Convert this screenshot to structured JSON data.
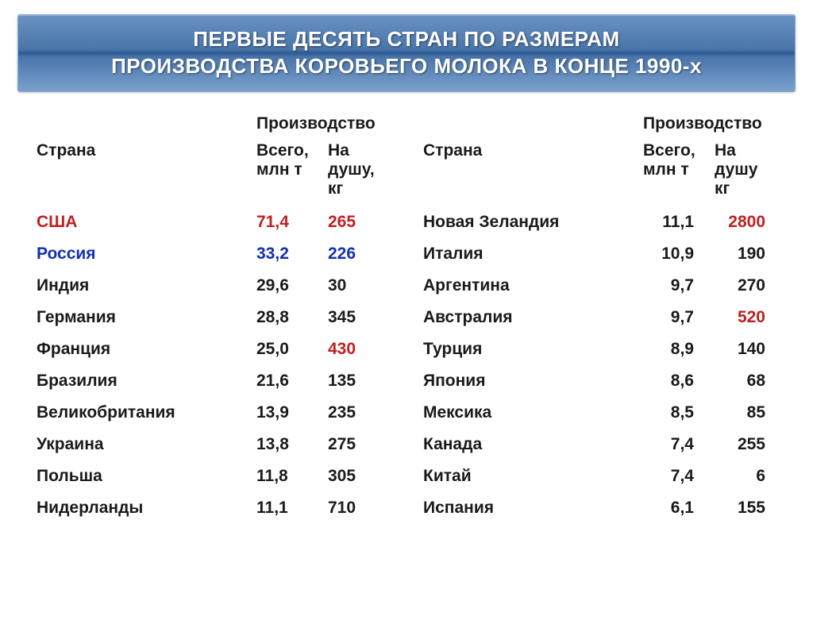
{
  "title_line1": "ПЕРВЫЕ ДЕСЯТЬ СТРАН ПО РАЗМЕРАМ",
  "title_line2": "ПРОИЗВОДСТВА КОРОВЬЕГО МОЛОКА В КОНЦЕ 1990-х",
  "headers": {
    "production": "Производство",
    "country": "Страна",
    "total": "Всего, млн т",
    "percapita_left": "На душу, кг",
    "percapita_right": "На душу кг"
  },
  "colors": {
    "red": "#c02020",
    "blue": "#1030b0",
    "text": "#1a1a1a",
    "title_bg_top": "#6a92c2",
    "title_bg_mid": "#2d5a95",
    "title_text": "#ffffff"
  },
  "fonts": {
    "title_size": 26,
    "cell_size": 21,
    "weight": "bold"
  },
  "left": [
    {
      "country": "США",
      "total": "71,4",
      "pc": "265",
      "country_cls": "red",
      "total_cls": "red",
      "pc_cls": "red"
    },
    {
      "country": "Россия",
      "total": "33,2",
      "pc": "226",
      "country_cls": "blue",
      "total_cls": "blue",
      "pc_cls": "blue"
    },
    {
      "country": "Индия",
      "total": "29,6",
      "pc": "30",
      "country_cls": "",
      "total_cls": "",
      "pc_cls": ""
    },
    {
      "country": "Германия",
      "total": "28,8",
      "pc": "345",
      "country_cls": "",
      "total_cls": "",
      "pc_cls": ""
    },
    {
      "country": "Франция",
      "total": "25,0",
      "pc": "430",
      "country_cls": "",
      "total_cls": "",
      "pc_cls": "red"
    },
    {
      "country": "Бразилия",
      "total": "21,6",
      "pc": "135",
      "country_cls": "",
      "total_cls": "",
      "pc_cls": ""
    },
    {
      "country": "Великобритания",
      "total": "13,9",
      "pc": "235",
      "country_cls": "",
      "total_cls": "",
      "pc_cls": ""
    },
    {
      "country": "Украина",
      "total": "13,8",
      "pc": "275",
      "country_cls": "",
      "total_cls": "",
      "pc_cls": ""
    },
    {
      "country": "Польша",
      "total": "11,8",
      "pc": "305",
      "country_cls": "",
      "total_cls": "",
      "pc_cls": ""
    },
    {
      "country": "Нидерланды",
      "total": "11,1",
      "pc": "710",
      "country_cls": "",
      "total_cls": "",
      "pc_cls": ""
    }
  ],
  "right": [
    {
      "country": "Новая Зеландия",
      "total": "11,1",
      "pc": "2800",
      "country_cls": "",
      "total_cls": "",
      "pc_cls": "red"
    },
    {
      "country": "Италия",
      "total": "10,9",
      "pc": "190",
      "country_cls": "",
      "total_cls": "",
      "pc_cls": ""
    },
    {
      "country": "Аргентина",
      "total": "9,7",
      "pc": "270",
      "country_cls": "",
      "total_cls": "",
      "pc_cls": ""
    },
    {
      "country": "Австралия",
      "total": "9,7",
      "pc": "520",
      "country_cls": "",
      "total_cls": "",
      "pc_cls": "red"
    },
    {
      "country": "Турция",
      "total": "8,9",
      "pc": "140",
      "country_cls": "",
      "total_cls": "",
      "pc_cls": ""
    },
    {
      "country": "Япония",
      "total": "8,6",
      "pc": "68",
      "country_cls": "",
      "total_cls": "",
      "pc_cls": ""
    },
    {
      "country": "Мексика",
      "total": "8,5",
      "pc": "85",
      "country_cls": "",
      "total_cls": "",
      "pc_cls": ""
    },
    {
      "country": "Канада",
      "total": "7,4",
      "pc": "255",
      "country_cls": "",
      "total_cls": "",
      "pc_cls": ""
    },
    {
      "country": "Китай",
      "total": "7,4",
      "pc": "6",
      "country_cls": "",
      "total_cls": "",
      "pc_cls": ""
    },
    {
      "country": "Испания",
      "total": "6,1",
      "pc": "155",
      "country_cls": "",
      "total_cls": "",
      "pc_cls": ""
    }
  ]
}
